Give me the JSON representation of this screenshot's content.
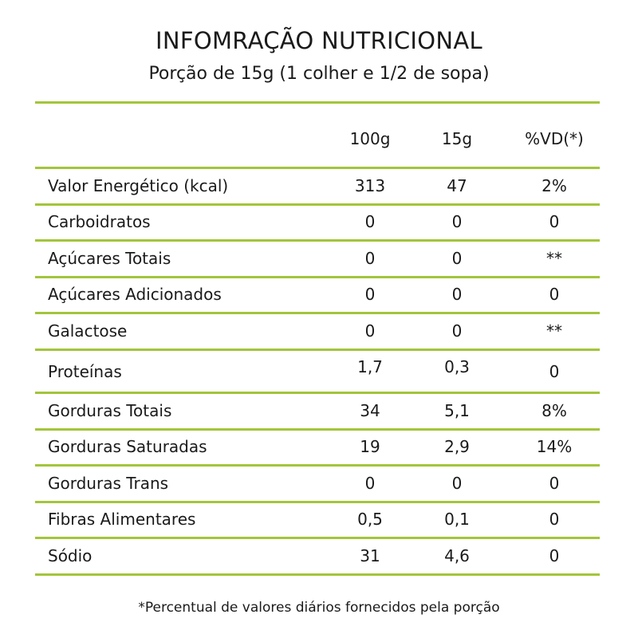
{
  "title": "INFOMRAÇÃO NUTRICIONAL",
  "subtitle": "Porção de 15g (1 colher e 1/2 de sopa)",
  "colors": {
    "rule": "#a3c53b",
    "text": "#1a1a1a"
  },
  "table": {
    "headers": {
      "col_100": "100g",
      "col_15": "15g",
      "col_vd": "%VD(*)"
    },
    "rows": [
      {
        "name": "Valor Energético (kcal)",
        "v100": "313",
        "v15": "47",
        "vd": "2%"
      },
      {
        "name": "Carboidratos",
        "v100": "0",
        "v15": "0",
        "vd": "0"
      },
      {
        "name": "Açúcares Totais",
        "v100": "0",
        "v15": "0",
        "vd": "**"
      },
      {
        "name": "Açúcares Adicionados",
        "v100": "0",
        "v15": "0",
        "vd": "0"
      },
      {
        "name": "Galactose",
        "v100": "0",
        "v15": "0",
        "vd": "**"
      },
      {
        "name": "Proteínas",
        "v100": "1,7",
        "v15": "0,3",
        "vd": "0"
      },
      {
        "name": "Gorduras Totais",
        "v100": "34",
        "v15": "5,1",
        "vd": "8%"
      },
      {
        "name": "Gorduras Saturadas",
        "v100": "19",
        "v15": "2,9",
        "vd": "14%"
      },
      {
        "name": "Gorduras Trans",
        "v100": "0",
        "v15": "0",
        "vd": "0"
      },
      {
        "name": "Fibras Alimentares",
        "v100": "0,5",
        "v15": "0,1",
        "vd": "0"
      },
      {
        "name": "Sódio",
        "v100": "31",
        "v15": "4,6",
        "vd": "0"
      }
    ]
  },
  "footnote": "*Percentual de valores diários fornecidos pela porção"
}
